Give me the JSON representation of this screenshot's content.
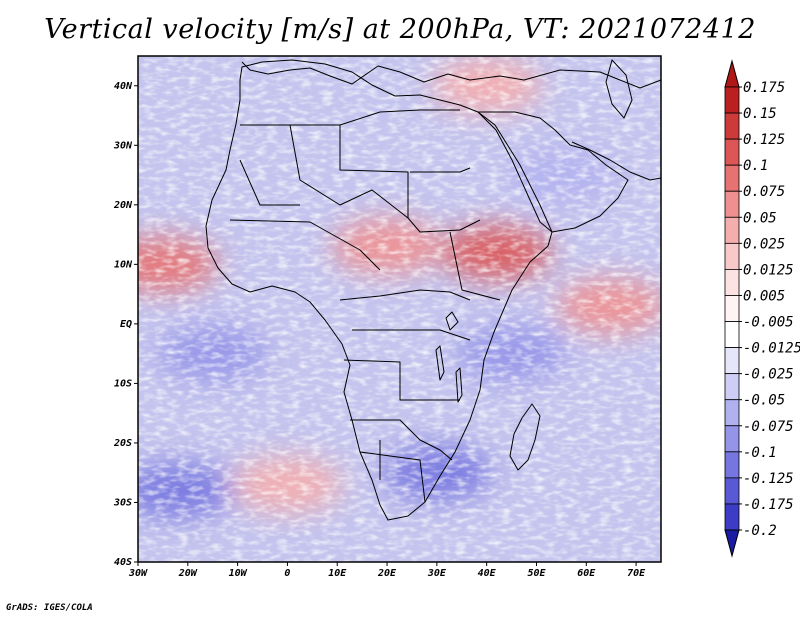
{
  "title": "Vertical velocity [m/s] at 200hPa, VT: 2021072412",
  "footer": "GrADS: IGES/COLA",
  "map": {
    "projection": "lat-lon",
    "lon_range": [
      -30,
      75
    ],
    "lat_range": [
      -40,
      45
    ],
    "lat_ticks": [
      {
        "value": 40,
        "label": "40N"
      },
      {
        "value": 30,
        "label": "30N"
      },
      {
        "value": 20,
        "label": "20N"
      },
      {
        "value": 10,
        "label": "10N"
      },
      {
        "value": 0,
        "label": "EQ"
      },
      {
        "value": -10,
        "label": "10S"
      },
      {
        "value": -20,
        "label": "20S"
      },
      {
        "value": -30,
        "label": "30S"
      },
      {
        "value": -40,
        "label": "40S"
      }
    ],
    "lon_ticks": [
      {
        "value": -30,
        "label": "30W"
      },
      {
        "value": -20,
        "label": "20W"
      },
      {
        "value": -10,
        "label": "10W"
      },
      {
        "value": 0,
        "label": "0"
      },
      {
        "value": 10,
        "label": "10E"
      },
      {
        "value": 20,
        "label": "20E"
      },
      {
        "value": 30,
        "label": "30E"
      },
      {
        "value": 40,
        "label": "40E"
      },
      {
        "value": 50,
        "label": "50E"
      },
      {
        "value": 60,
        "label": "60E"
      },
      {
        "value": 70,
        "label": "70E"
      }
    ],
    "field_regions": [
      {
        "lon": -25,
        "lat": 10,
        "value": 0.1
      },
      {
        "lon": 20,
        "lat": 13,
        "value": 0.075
      },
      {
        "lon": 42,
        "lat": 12,
        "value": 0.125
      },
      {
        "lon": 65,
        "lat": 3,
        "value": 0.075
      },
      {
        "lon": 0,
        "lat": -27,
        "value": 0.05
      },
      {
        "lon": 40,
        "lat": 40,
        "value": 0.05
      },
      {
        "lon": -15,
        "lat": -5,
        "value": -0.075
      },
      {
        "lon": 45,
        "lat": -5,
        "value": -0.075
      },
      {
        "lon": 30,
        "lat": -25,
        "value": -0.1
      },
      {
        "lon": -22,
        "lat": -28,
        "value": -0.1
      },
      {
        "lon": 55,
        "lat": 25,
        "value": -0.05
      }
    ]
  },
  "colorbar": {
    "levels": [
      {
        "label": "0.175",
        "color": "#bb2020"
      },
      {
        "label": "0.15",
        "color": "#cd3a3a"
      },
      {
        "label": "0.125",
        "color": "#dc5656"
      },
      {
        "label": "0.1",
        "color": "#e77272"
      },
      {
        "label": "0.075",
        "color": "#ef9090"
      },
      {
        "label": "0.05",
        "color": "#f5aeae"
      },
      {
        "label": "0.025",
        "color": "#f9c9c9"
      },
      {
        "label": "0.0125",
        "color": "#fce2e2"
      },
      {
        "label": "0.005",
        "color": "#fef4f4"
      },
      {
        "label": "-0.005",
        "color": "#ffffff"
      },
      {
        "label": "-0.0125",
        "color": "#e6e6fb"
      },
      {
        "label": "-0.025",
        "color": "#cdcdf6"
      },
      {
        "label": "-0.05",
        "color": "#b1b1f0"
      },
      {
        "label": "-0.075",
        "color": "#9494e9"
      },
      {
        "label": "-0.1",
        "color": "#7676e0"
      },
      {
        "label": "-0.125",
        "color": "#5959d5"
      },
      {
        "label": "-0.175",
        "color": "#3c3cc5"
      },
      {
        "label": "-0.2",
        "color": "#2222b0"
      }
    ],
    "top_arrow_color": "#b01818",
    "bottom_arrow_color": "#1a1aa3"
  }
}
